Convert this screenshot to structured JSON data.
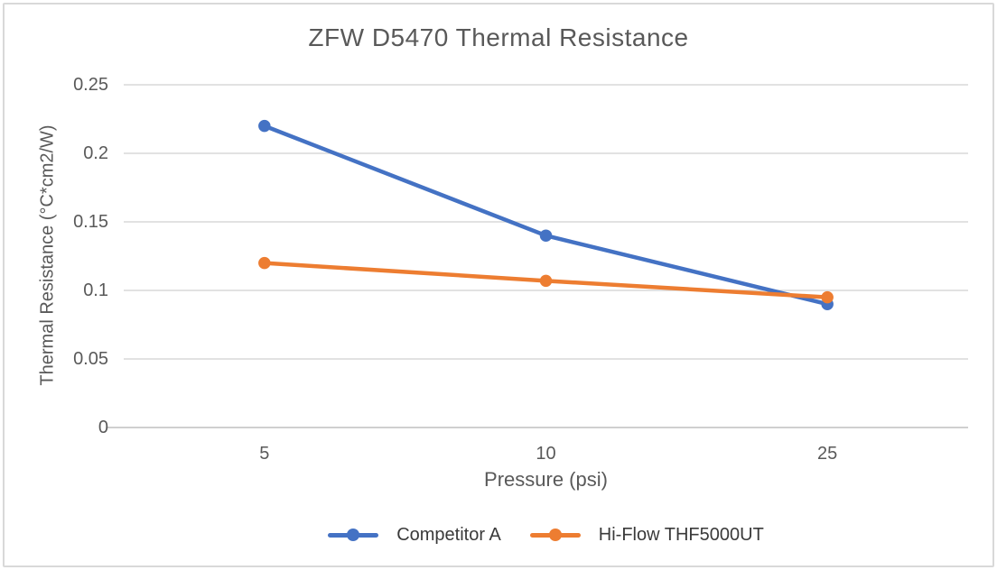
{
  "window": {
    "background_color": "#FFFFFF",
    "frame_border_color": "#D9D9D9"
  },
  "chart_data": {
    "type": "line",
    "title": "ZFW D5470 Thermal Resistance",
    "xlabel": "Pressure (psi)",
    "ylabel": "Thermal Resistance (°C*cm2/W)",
    "categories": [
      "5",
      "10",
      "25"
    ],
    "series": [
      {
        "name": "Competitor A",
        "color": "#4472C4",
        "values": [
          0.22,
          0.14,
          0.09
        ]
      },
      {
        "name": "Hi-Flow THF5000UT",
        "color": "#ED7D31",
        "values": [
          0.12,
          0.107,
          0.095
        ]
      }
    ],
    "ylim": [
      0,
      0.25
    ],
    "yticks": [
      {
        "label": "0",
        "value": 0
      },
      {
        "label": "0.05",
        "value": 0.05
      },
      {
        "label": "0.1",
        "value": 0.1
      },
      {
        "label": "0.15",
        "value": 0.15
      },
      {
        "label": "0.2",
        "value": 0.2
      },
      {
        "label": "0.25",
        "value": 0.25
      }
    ],
    "grid": "horizontal",
    "legend_position": "bottom",
    "marker_style": "circle",
    "colors": {
      "title_text": "#595959",
      "axis_text": "#595959",
      "legend_text": "#3A3A3A",
      "gridline": "#D9D9D9",
      "axis_line": "#BFBFBF"
    }
  }
}
